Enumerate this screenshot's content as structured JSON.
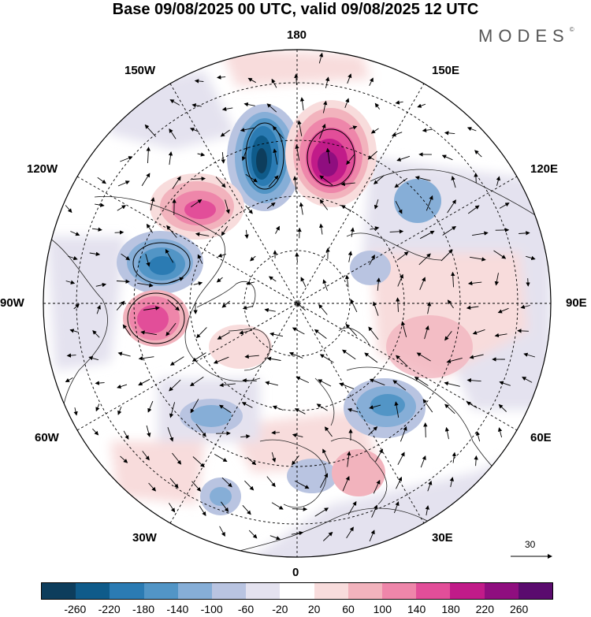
{
  "header": {
    "title": "Base 09/08/2025 00 UTC, valid 09/08/2025 12 UTC",
    "brand": "MODES",
    "brand_mark": "©"
  },
  "map": {
    "projection": "north-polar-stereographic",
    "longitude_labels": [
      "180",
      "150E",
      "120E",
      "90E",
      "60E",
      "30E",
      "0",
      "30W",
      "60W",
      "90W",
      "120W",
      "150W"
    ],
    "reference_vector_label": "30",
    "anomaly_centers": [
      {
        "name": "low-chukchi",
        "sign": "negative",
        "value": -260
      },
      {
        "name": "high-east-siberian",
        "sign": "positive",
        "value": 260
      },
      {
        "name": "high-alaska",
        "sign": "positive",
        "value": 180
      },
      {
        "name": "low-canada-west",
        "sign": "negative",
        "value": -180
      },
      {
        "name": "high-hudson",
        "sign": "positive",
        "value": 180
      },
      {
        "name": "low-labrador",
        "sign": "negative",
        "value": -100
      },
      {
        "name": "low-west-siberia",
        "sign": "negative",
        "value": -100
      },
      {
        "name": "low-scandinavia",
        "sign": "negative",
        "value": -60
      }
    ]
  },
  "colorbar": {
    "tick_labels": [
      "-260",
      "-220",
      "-180",
      "-140",
      "-100",
      "-60",
      "-20",
      "20",
      "60",
      "100",
      "140",
      "180",
      "220",
      "260"
    ],
    "colors": [
      "#0d3d5c",
      "#0f5b8a",
      "#2b7bb3",
      "#5295c6",
      "#86aed7",
      "#b9c4e1",
      "#e4e2ef",
      "#ffffff",
      "#f8dcdc",
      "#f2b3bd",
      "#ee86aa",
      "#e24e99",
      "#c11b89",
      "#8f0e7f",
      "#5a0b6e"
    ]
  }
}
